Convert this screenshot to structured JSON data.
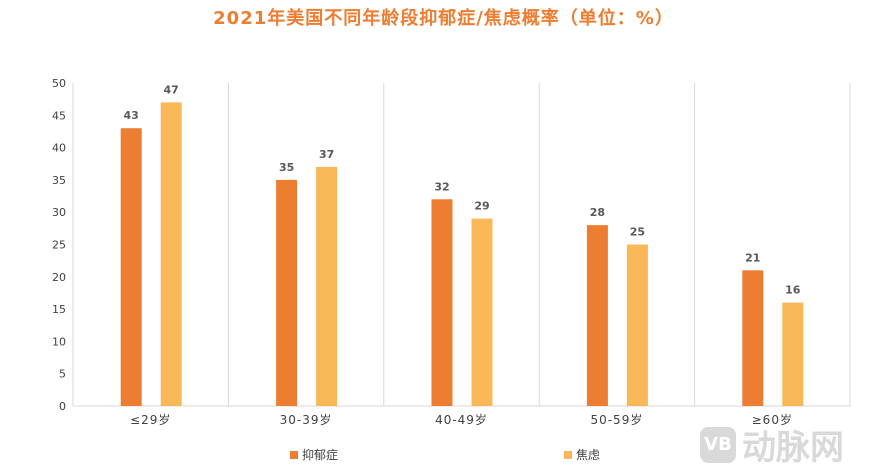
{
  "chart_data": {
    "type": "bar",
    "title": "2021年美国不同年龄段抑郁症/焦虑概率（单位：%）",
    "categories": [
      "≤29岁",
      "30-39岁",
      "40-49岁",
      "50-59岁",
      "≥60岁"
    ],
    "series": [
      {
        "name": "抑郁症",
        "values": [
          43,
          35,
          32,
          28,
          21
        ],
        "color": "#ED7D31"
      },
      {
        "name": "焦虑",
        "values": [
          47,
          37,
          29,
          25,
          16
        ],
        "color": "#F8B857"
      }
    ],
    "ylim": [
      0,
      50
    ],
    "yticks": [
      0,
      5,
      10,
      15,
      20,
      25,
      30,
      35,
      40,
      45,
      50
    ],
    "grid": "vertical category separators",
    "legend": "bottom",
    "xlabel": "",
    "ylabel": ""
  },
  "watermark": "动脉网"
}
